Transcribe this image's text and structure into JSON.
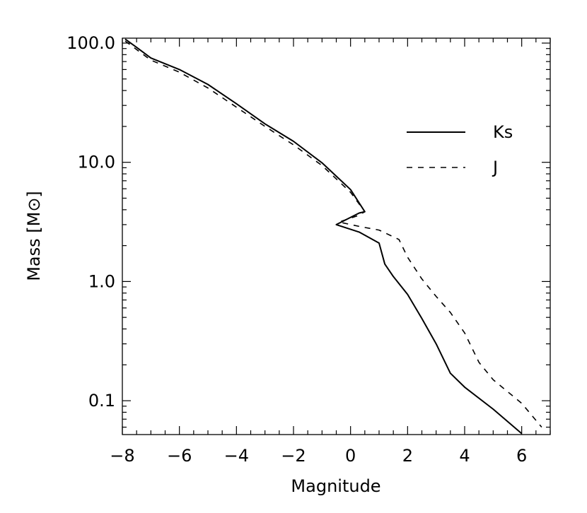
{
  "chart_data": {
    "type": "line",
    "xlabel": "Magnitude",
    "ylabel": "Mass  [M⊙]",
    "xlim": [
      -8,
      7
    ],
    "ylim": [
      0.052,
      110
    ],
    "yscale": "log",
    "x_ticks": [
      -8,
      -6,
      -4,
      -2,
      0,
      2,
      4,
      6
    ],
    "x_tick_labels": [
      "−8",
      "−6",
      "−4",
      "−2",
      "0",
      "2",
      "4",
      "6"
    ],
    "y_ticks": [
      0.1,
      1,
      10,
      100
    ],
    "y_tick_labels": [
      "0.1",
      "1.0",
      "10.0",
      "100.0"
    ],
    "grid": false,
    "legend_position": "top-right",
    "colors": {
      "line": "#000000",
      "axis": "#000000",
      "background": "#ffffff"
    },
    "series": [
      {
        "name": "Ks",
        "style": "solid",
        "x": [
          -7.9,
          -7.5,
          -7.0,
          -6.0,
          -5.0,
          -4.0,
          -3.0,
          -2.0,
          -1.0,
          0.0,
          0.5,
          0.3,
          -0.5,
          0.3,
          1.0,
          1.2,
          1.5,
          2.0,
          2.5,
          3.0,
          3.5,
          4.0,
          5.0,
          6.0
        ],
        "y": [
          108,
          92,
          75,
          60,
          45,
          31,
          21,
          15,
          9.9,
          5.9,
          3.85,
          3.75,
          3.0,
          2.6,
          2.1,
          1.4,
          1.1,
          0.78,
          0.49,
          0.3,
          0.17,
          0.13,
          0.085,
          0.053
        ]
      },
      {
        "name": "J",
        "style": "dashed",
        "x": [
          -7.9,
          -7.0,
          -6.0,
          -5.0,
          -4.0,
          -3.0,
          -2.0,
          -1.0,
          0.0,
          0.5,
          0.3,
          -0.4,
          0.3,
          1.0,
          1.7,
          2.0,
          2.5,
          3.0,
          3.5,
          4.0,
          4.5,
          5.0,
          6.0,
          6.7
        ],
        "y": [
          104,
          72,
          57,
          42,
          29,
          20,
          14,
          9.4,
          5.6,
          3.85,
          3.6,
          3.15,
          2.9,
          2.7,
          2.25,
          1.6,
          1.05,
          0.75,
          0.55,
          0.37,
          0.21,
          0.15,
          0.095,
          0.06
        ]
      }
    ]
  }
}
